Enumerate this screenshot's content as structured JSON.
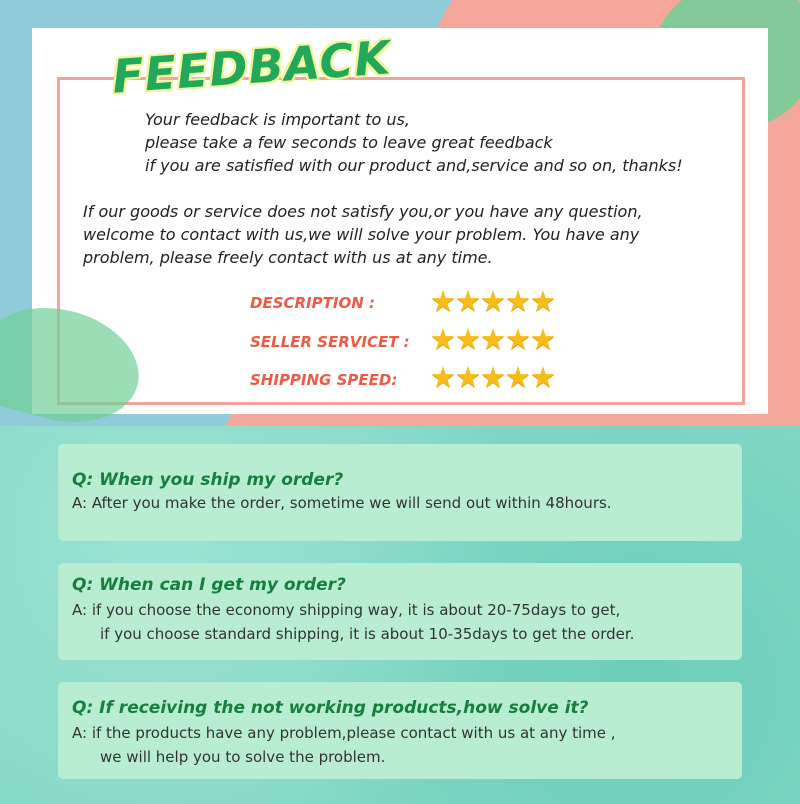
{
  "title": "FEEDBACK",
  "intro": [
    "Your feedback is important to us,",
    "please take a few seconds to leave great feedback",
    "if you are satisfied with our product and,service and so on, thanks!"
  ],
  "contact": [
    "If our goods or service does not satisfy you,or you have any question,",
    "welcome to contact with us,we will solve your problem. You have any",
    "problem, please freely contact with us at any time."
  ],
  "ratings": [
    {
      "label": "DESCRIPTION :",
      "stars": 5
    },
    {
      "label": "SELLER SERVICET :",
      "stars": 5
    },
    {
      "label": "SHIPPING SPEED:",
      "stars": 5
    }
  ],
  "faq": [
    {
      "q": "Q: When you ship my order?",
      "a": [
        "A: After you make the order, sometime we will send out within 48hours."
      ]
    },
    {
      "q": "Q: When can I get my order?",
      "a": [
        "A: if you choose the economy shipping way, it is about 20-75days to get,",
        "if you choose standard shipping, it is about 10-35days to get the order."
      ]
    },
    {
      "q": "Q: If receiving the not working products,how solve it?",
      "a": [
        "A: if the products have any problem,please contact with us at any time ,",
        "we will help you to solve the problem."
      ]
    }
  ],
  "colors": {
    "title": "#22a85a",
    "rating_label": "#ee5b45",
    "star": "#f7bd16",
    "question": "#15803d",
    "faq_card": "#b8edd2"
  }
}
